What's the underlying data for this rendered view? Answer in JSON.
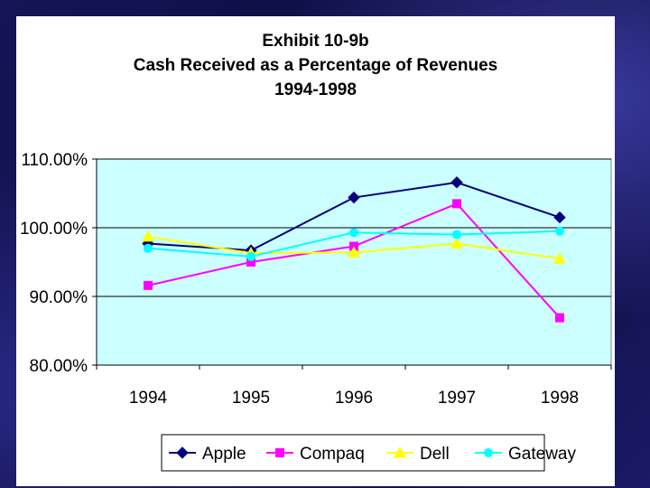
{
  "chart_data": {
    "type": "line",
    "title_lines": [
      "Exhibit 10-9b",
      "Cash Received as a Percentage of Revenues",
      "1994-1998"
    ],
    "categories": [
      "1994",
      "1995",
      "1996",
      "1997",
      "1998"
    ],
    "ylim": [
      80,
      110
    ],
    "yticks": [
      80,
      90,
      100,
      110
    ],
    "ytick_labels": [
      "80.00%",
      "90.00%",
      "100.00%",
      "110.00%"
    ],
    "grid": true,
    "legend_position": "bottom",
    "plot_background": "#ccffff",
    "series": [
      {
        "name": "Apple",
        "color": "#000080",
        "marker": "diamond",
        "values": [
          97.7,
          96.7,
          104.4,
          106.6,
          101.5
        ]
      },
      {
        "name": "Compaq",
        "color": "#ff00ff",
        "marker": "square",
        "values": [
          91.6,
          95.0,
          97.3,
          103.5,
          86.9
        ]
      },
      {
        "name": "Dell",
        "color": "#ffff00",
        "marker": "triangle",
        "values": [
          98.7,
          96.3,
          96.4,
          97.7,
          95.5
        ]
      },
      {
        "name": "Gateway",
        "color": "#00ffff",
        "marker": "circle",
        "values": [
          97.0,
          95.8,
          99.3,
          99.0,
          99.5
        ]
      }
    ]
  }
}
